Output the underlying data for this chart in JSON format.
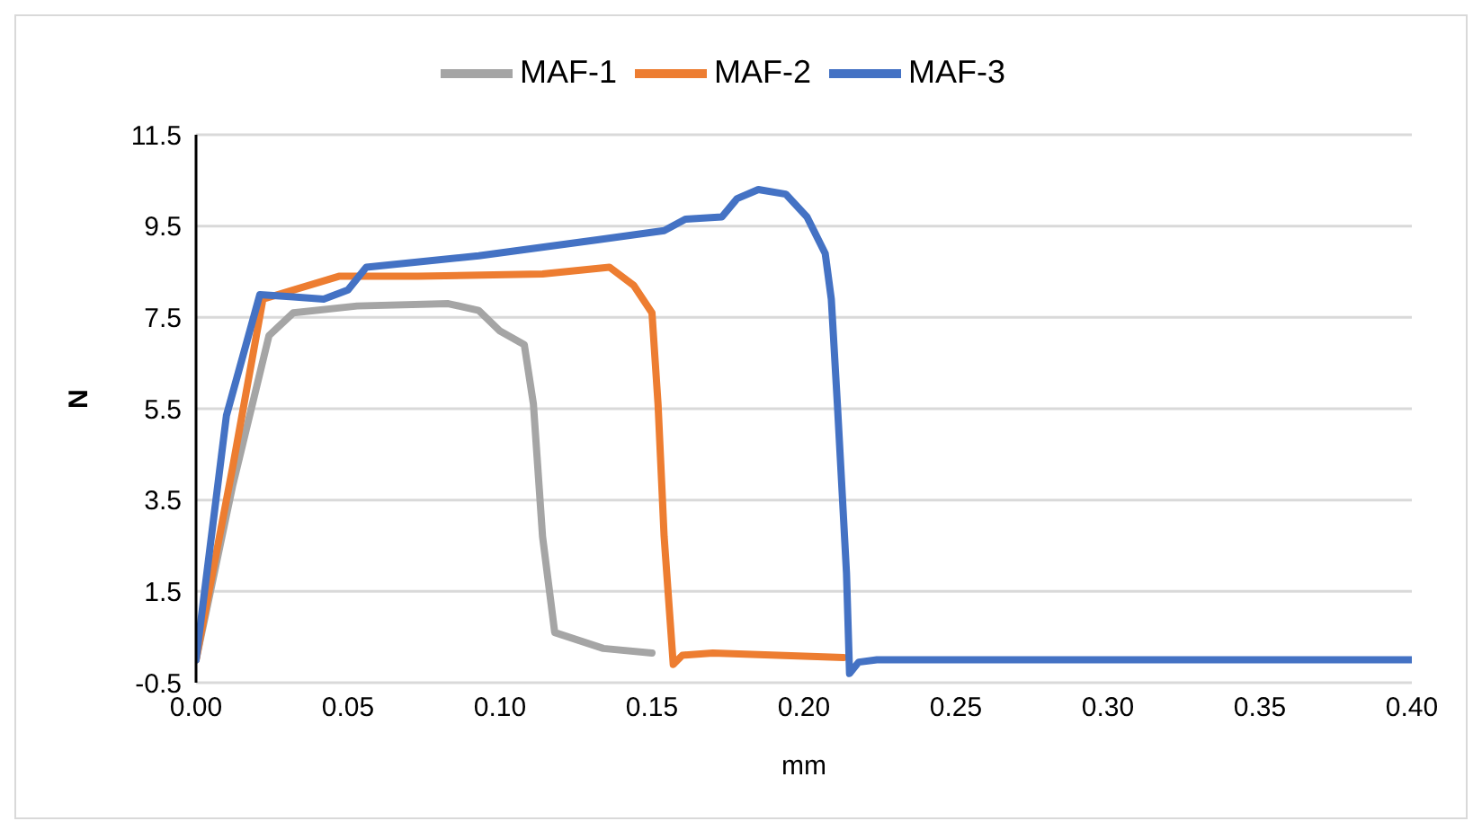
{
  "chart_data": {
    "type": "line",
    "xlabel": "mm",
    "ylabel": "N",
    "xlim": [
      0,
      0.4
    ],
    "xticks": [
      {
        "value": 0,
        "label": "0.00"
      },
      {
        "value": 0.05,
        "label": "0.05"
      },
      {
        "value": 0.1,
        "label": "0.10"
      },
      {
        "value": 0.15,
        "label": "0.15"
      },
      {
        "value": 0.2,
        "label": "0.20"
      },
      {
        "value": 0.25,
        "label": "0.25"
      },
      {
        "value": 0.3,
        "label": "0.30"
      },
      {
        "value": 0.35,
        "label": "0.35"
      },
      {
        "value": 0.4,
        "label": "0.40"
      }
    ],
    "ylim": [
      -0.5,
      11.5
    ],
    "yticks": [
      -0.5,
      1.5,
      3.5,
      5.5,
      7.5,
      9.5,
      11.5
    ],
    "grid": "y",
    "legend": "top",
    "marker": "none",
    "line_style": "solid",
    "series": [
      {
        "name": "MAF-1",
        "color": "#a5a5a5",
        "x": [
          0,
          0.012,
          0.024,
          0.032,
          0.053,
          0.083,
          0.093,
          0.1,
          0.108,
          0.111,
          0.114,
          0.118,
          0.134,
          0.15
        ],
        "values": [
          0,
          3.8,
          7.1,
          7.6,
          7.75,
          7.8,
          7.65,
          7.2,
          6.9,
          5.6,
          2.7,
          0.6,
          0.25,
          0.15
        ]
      },
      {
        "name": "MAF-2",
        "color": "#ed7d31",
        "x": [
          0,
          0.012,
          0.022,
          0.032,
          0.047,
          0.073,
          0.114,
          0.136,
          0.144,
          0.15,
          0.152,
          0.154,
          0.157,
          0.16,
          0.17,
          0.213
        ],
        "values": [
          0,
          4.2,
          7.9,
          8.1,
          8.4,
          8.4,
          8.45,
          8.6,
          8.2,
          7.6,
          5.6,
          2.7,
          -0.1,
          0.1,
          0.15,
          0.05
        ]
      },
      {
        "name": "MAF-3",
        "color": "#4472c4",
        "x": [
          0,
          0.01,
          0.021,
          0.032,
          0.042,
          0.05,
          0.056,
          0.093,
          0.132,
          0.154,
          0.161,
          0.173,
          0.178,
          0.185,
          0.194,
          0.201,
          0.207,
          0.209,
          0.211,
          0.214,
          0.215,
          0.218,
          0.224,
          0.4
        ],
        "values": [
          0,
          5.35,
          8,
          7.95,
          7.9,
          8.1,
          8.6,
          8.85,
          9.2,
          9.4,
          9.65,
          9.7,
          10.1,
          10.3,
          10.2,
          9.7,
          8.9,
          7.9,
          5.6,
          1.9,
          -0.3,
          -0.05,
          0,
          0
        ]
      }
    ]
  }
}
